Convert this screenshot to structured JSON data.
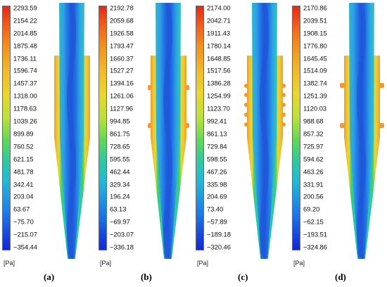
{
  "unit_label": "[Pa]",
  "panels": [
    {
      "caption": "(a)",
      "colorbar": [
        "2293.59",
        "2154.22",
        "2014.85",
        "1875.48",
        "1736.11",
        "1596.74",
        "1457.37",
        "1318.00",
        "1178.63",
        "1039.26",
        "899.89",
        "760.52",
        "621.15",
        "481.78",
        "342.41",
        "203.04",
        "63.67",
        "−75.70",
        "−215.07",
        "−354.44"
      ],
      "inlets": 0
    },
    {
      "caption": "(b)",
      "colorbar": [
        "2192.78",
        "2059.68",
        "1926.58",
        "1793.47",
        "1660.37",
        "1527.27",
        "1394.16",
        "1261.06",
        "1127.96",
        "994.85",
        "861.75",
        "728.65",
        "595.55",
        "462.44",
        "329.34",
        "196.24",
        "63.13",
        "−69.97",
        "−203.07",
        "−336.18"
      ],
      "inlets": 2
    },
    {
      "caption": "(c)",
      "colorbar": [
        "2174.00",
        "2042.71",
        "1911.43",
        "1780.14",
        "1648.85",
        "1517.56",
        "1386.28",
        "1254.99",
        "1123.70",
        "992.41",
        "861.13",
        "729.84",
        "598.55",
        "467.26",
        "335.98",
        "204.69",
        "73.40",
        "−57.89",
        "−189.18",
        "−320.46"
      ],
      "inlets": 5
    },
    {
      "caption": "(d)",
      "colorbar": [
        "2170.86",
        "2039.51",
        "1908.15",
        "1776.80",
        "1645.45",
        "1514.09",
        "1382.74",
        "1251.39",
        "1120.03",
        "988.68",
        "857.32",
        "725.97",
        "594.62",
        "463.26",
        "331.91",
        "200.56",
        "69.20",
        "−62.15",
        "−193.51",
        "−324.86"
      ],
      "inlets": 2
    }
  ],
  "colors": {
    "outer_orange": "#f39a2c",
    "wall_yellow": "#e7d93a",
    "core_blue": "#1f57d8",
    "mid_cyan": "#27c3c6",
    "green": "#3fcf6d"
  }
}
